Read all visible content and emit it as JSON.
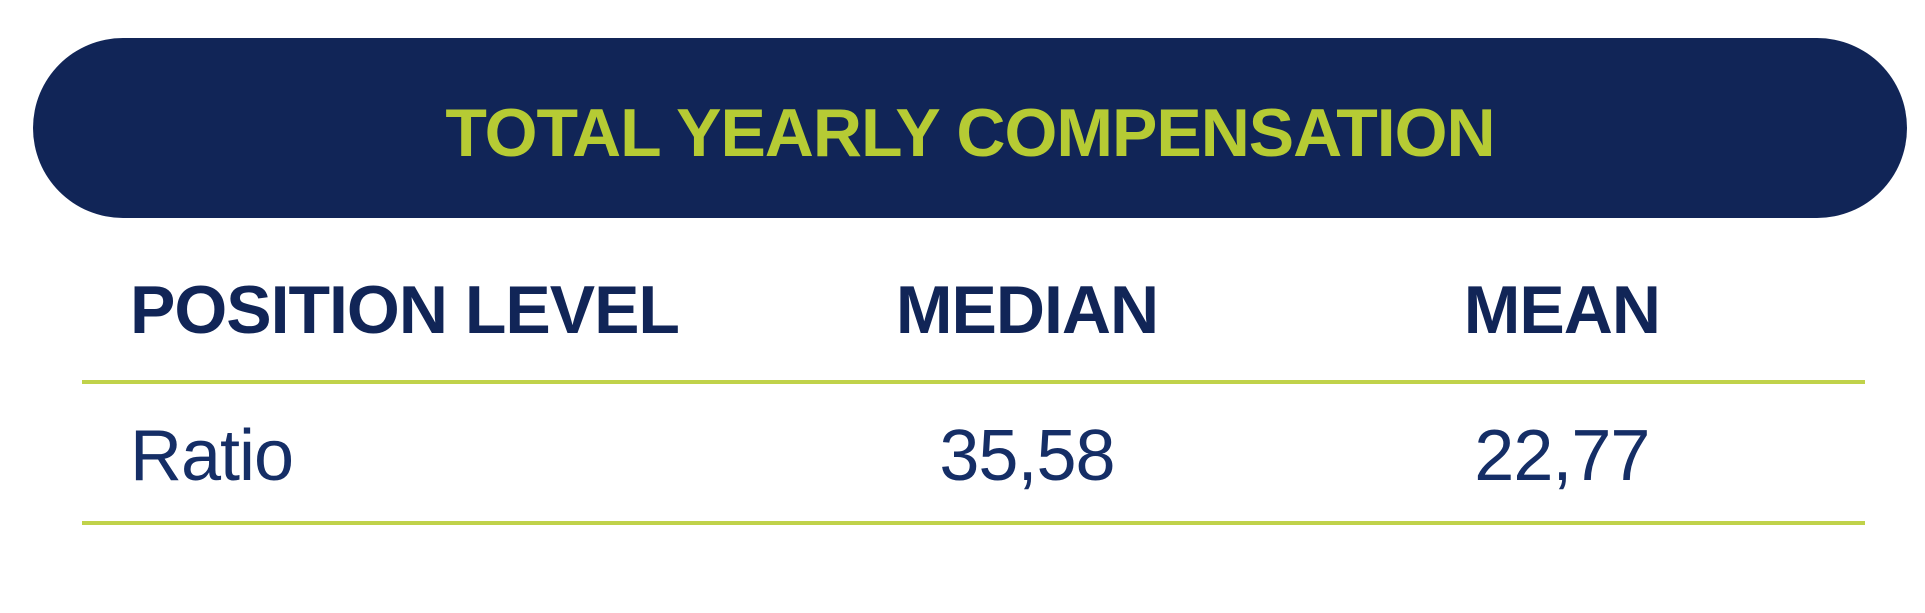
{
  "banner": {
    "title": "TOTAL YEARLY COMPENSATION"
  },
  "colors": {
    "navy_banner": "#112557",
    "navy_text": "#152e66",
    "lime_text": "#b6cb34",
    "lime_line": "#c0d24a",
    "background": "#ffffff"
  },
  "table": {
    "headers": {
      "position_level": "POSITION LEVEL",
      "median": "MEDIAN",
      "mean": "MEAN"
    },
    "rows": [
      {
        "position_level": "Ratio",
        "median": "35,58",
        "mean": "22,77"
      }
    ]
  },
  "chart_data": {
    "type": "table",
    "title": "TOTAL YEARLY COMPENSATION",
    "columns": [
      "POSITION LEVEL",
      "MEDIAN",
      "MEAN"
    ],
    "rows": [
      [
        "Ratio",
        "35,58",
        "22,77"
      ]
    ],
    "numeric_values": {
      "median": 35.58,
      "mean": 22.77
    },
    "number_format": "comma-decimal"
  }
}
